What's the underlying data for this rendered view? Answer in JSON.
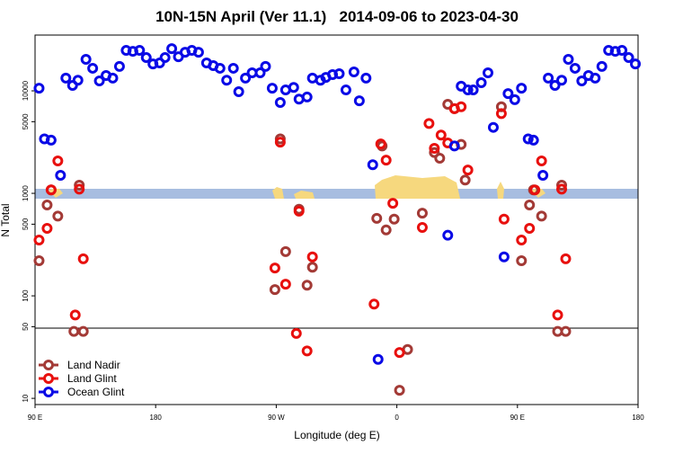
{
  "chart_data": {
    "type": "scatter",
    "title": "10N-15N April (Ver 11.1)   2014-09-06 to 2023-04-30",
    "x_label": "Longitude (deg E)",
    "y_label": "N Total",
    "xlim": [
      90,
      540
    ],
    "xticks": [
      {
        "value": 90,
        "label": "90 E"
      },
      180,
      {
        "value": 270,
        "label": "90 W"
      },
      {
        "value": 360,
        "label": "0"
      },
      {
        "value": 450,
        "label": "90 E"
      },
      {
        "value": 540,
        "label": "180"
      }
    ],
    "ylim": [
      8.7,
      35000
    ],
    "log_y": true,
    "yticks": [
      10,
      50,
      100,
      500,
      1000,
      5000,
      10000
    ],
    "legend": "lower left",
    "series": [
      {
        "name": "Land Nadir",
        "color": "#a33a36",
        "x": [
          93,
          99,
          102,
          107,
          123,
          119,
          126,
          269,
          273,
          277,
          293,
          297,
          287,
          345,
          349,
          352,
          358,
          362,
          368,
          379,
          388,
          392,
          398,
          403,
          408,
          411,
          438,
          453,
          459,
          462,
          468,
          483,
          480,
          486
        ],
        "values": [
          220,
          770,
          1080,
          600,
          1200,
          45,
          45,
          115,
          3400,
          270,
          127,
          190,
          700,
          570,
          2900,
          440,
          560,
          12,
          30,
          640,
          2500,
          2200,
          7400,
          6700,
          3000,
          1350,
          7000,
          220,
          770,
          1080,
          600,
          1200,
          45,
          45
        ]
      },
      {
        "name": "Land Glint",
        "color": "#e8100e",
        "x": [
          93,
          99,
          102,
          107,
          123,
          120,
          126,
          273,
          269,
          277,
          287,
          285,
          293,
          297,
          343,
          348,
          352,
          357,
          362,
          379,
          384,
          388,
          393,
          398,
          403,
          408,
          413,
          438,
          440,
          453,
          459,
          463,
          468,
          483,
          480,
          486
        ],
        "values": [
          350,
          455,
          1080,
          2070,
          1100,
          65,
          230,
          3160,
          187,
          130,
          670,
          43,
          29,
          240,
          83,
          3030,
          2110,
          800,
          28,
          465,
          4800,
          2750,
          3700,
          3100,
          6700,
          7000,
          1690,
          6000,
          560,
          350,
          455,
          1080,
          2070,
          1100,
          65,
          230
        ]
      },
      {
        "name": "Ocean Glint",
        "color": "#0a0ae6",
        "x": [
          93,
          97,
          102,
          109,
          113,
          118,
          122,
          128,
          133,
          138,
          143,
          148,
          153,
          158,
          163,
          168,
          173,
          178,
          183,
          187,
          192,
          197,
          202,
          207,
          212,
          218,
          223,
          228,
          233,
          238,
          242,
          247,
          252,
          258,
          262,
          267,
          273,
          277,
          283,
          287,
          293,
          297,
          303,
          307,
          312,
          317,
          322,
          328,
          332,
          337,
          342,
          346,
          398,
          403,
          408,
          413,
          417,
          423,
          428,
          432,
          440,
          443,
          448,
          453,
          458,
          462,
          469,
          473,
          478,
          483,
          488,
          493,
          498,
          503,
          508,
          513,
          518,
          523,
          528,
          533,
          538
        ],
        "values": [
          10600,
          3400,
          3300,
          1500,
          13300,
          11300,
          12700,
          20300,
          16600,
          12500,
          14100,
          13300,
          17300,
          24800,
          24300,
          24800,
          21100,
          18300,
          18700,
          21100,
          25800,
          21500,
          23800,
          24800,
          23800,
          18700,
          17600,
          16600,
          12700,
          16600,
          9800,
          13300,
          15000,
          15000,
          17300,
          10600,
          7700,
          10200,
          10800,
          8300,
          8700,
          13300,
          12700,
          13500,
          14400,
          14700,
          10200,
          15300,
          8000,
          13300,
          1900,
          24,
          390,
          2900,
          11100,
          10200,
          10200,
          12000,
          15000,
          4400,
          240,
          9400,
          8200,
          10600,
          3400,
          3300,
          1500,
          13300,
          11300,
          12700,
          20300,
          16600,
          12500,
          14100,
          13300,
          17300,
          24800,
          24300,
          24800,
          21100,
          18300
        ]
      }
    ]
  }
}
